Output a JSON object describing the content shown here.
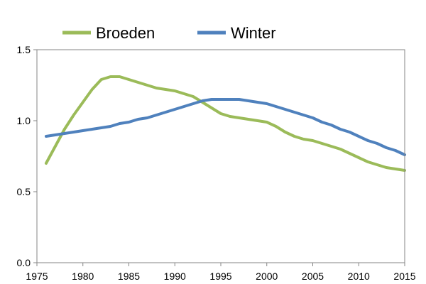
{
  "chart_data": {
    "type": "line",
    "title": "",
    "xlabel": "",
    "ylabel": "",
    "xlim": [
      1975,
      2015
    ],
    "ylim": [
      0.0,
      1.5
    ],
    "x_ticks": [
      1975,
      1980,
      1985,
      1990,
      1995,
      2000,
      2005,
      2010,
      2015
    ],
    "y_ticks": [
      0.0,
      0.5,
      1.0,
      1.5
    ],
    "x_tick_labels": [
      "1975",
      "1980",
      "1985",
      "1990",
      "1995",
      "2000",
      "2005",
      "2010",
      "2015"
    ],
    "y_tick_labels": [
      "0.0",
      "0.5",
      "1.0",
      "1.5"
    ],
    "grid": false,
    "legend_position": "top",
    "series": [
      {
        "name": "Broeden",
        "color": "#9BBB59",
        "x": [
          1976,
          1977,
          1978,
          1979,
          1980,
          1981,
          1982,
          1983,
          1984,
          1985,
          1986,
          1987,
          1988,
          1989,
          1990,
          1991,
          1992,
          1993,
          1994,
          1995,
          1996,
          1997,
          1998,
          1999,
          2000,
          2001,
          2002,
          2003,
          2004,
          2005,
          2006,
          2007,
          2008,
          2009,
          2010,
          2011,
          2012,
          2013,
          2014,
          2015
        ],
        "values": [
          0.7,
          0.82,
          0.94,
          1.04,
          1.13,
          1.22,
          1.29,
          1.31,
          1.31,
          1.29,
          1.27,
          1.25,
          1.23,
          1.22,
          1.21,
          1.19,
          1.17,
          1.13,
          1.09,
          1.05,
          1.03,
          1.02,
          1.01,
          1.0,
          0.99,
          0.96,
          0.92,
          0.89,
          0.87,
          0.86,
          0.84,
          0.82,
          0.8,
          0.77,
          0.74,
          0.71,
          0.69,
          0.67,
          0.66,
          0.65
        ]
      },
      {
        "name": "Winter",
        "color": "#4F81BD",
        "x": [
          1976,
          1977,
          1978,
          1979,
          1980,
          1981,
          1982,
          1983,
          1984,
          1985,
          1986,
          1987,
          1988,
          1989,
          1990,
          1991,
          1992,
          1993,
          1994,
          1995,
          1996,
          1997,
          1998,
          1999,
          2000,
          2001,
          2002,
          2003,
          2004,
          2005,
          2006,
          2007,
          2008,
          2009,
          2010,
          2011,
          2012,
          2013,
          2014,
          2015
        ],
        "values": [
          0.89,
          0.9,
          0.91,
          0.92,
          0.93,
          0.94,
          0.95,
          0.96,
          0.98,
          0.99,
          1.01,
          1.02,
          1.04,
          1.06,
          1.08,
          1.1,
          1.12,
          1.14,
          1.15,
          1.15,
          1.15,
          1.15,
          1.14,
          1.13,
          1.12,
          1.1,
          1.08,
          1.06,
          1.04,
          1.02,
          0.99,
          0.97,
          0.94,
          0.92,
          0.89,
          0.86,
          0.84,
          0.81,
          0.79,
          0.76
        ]
      }
    ]
  }
}
